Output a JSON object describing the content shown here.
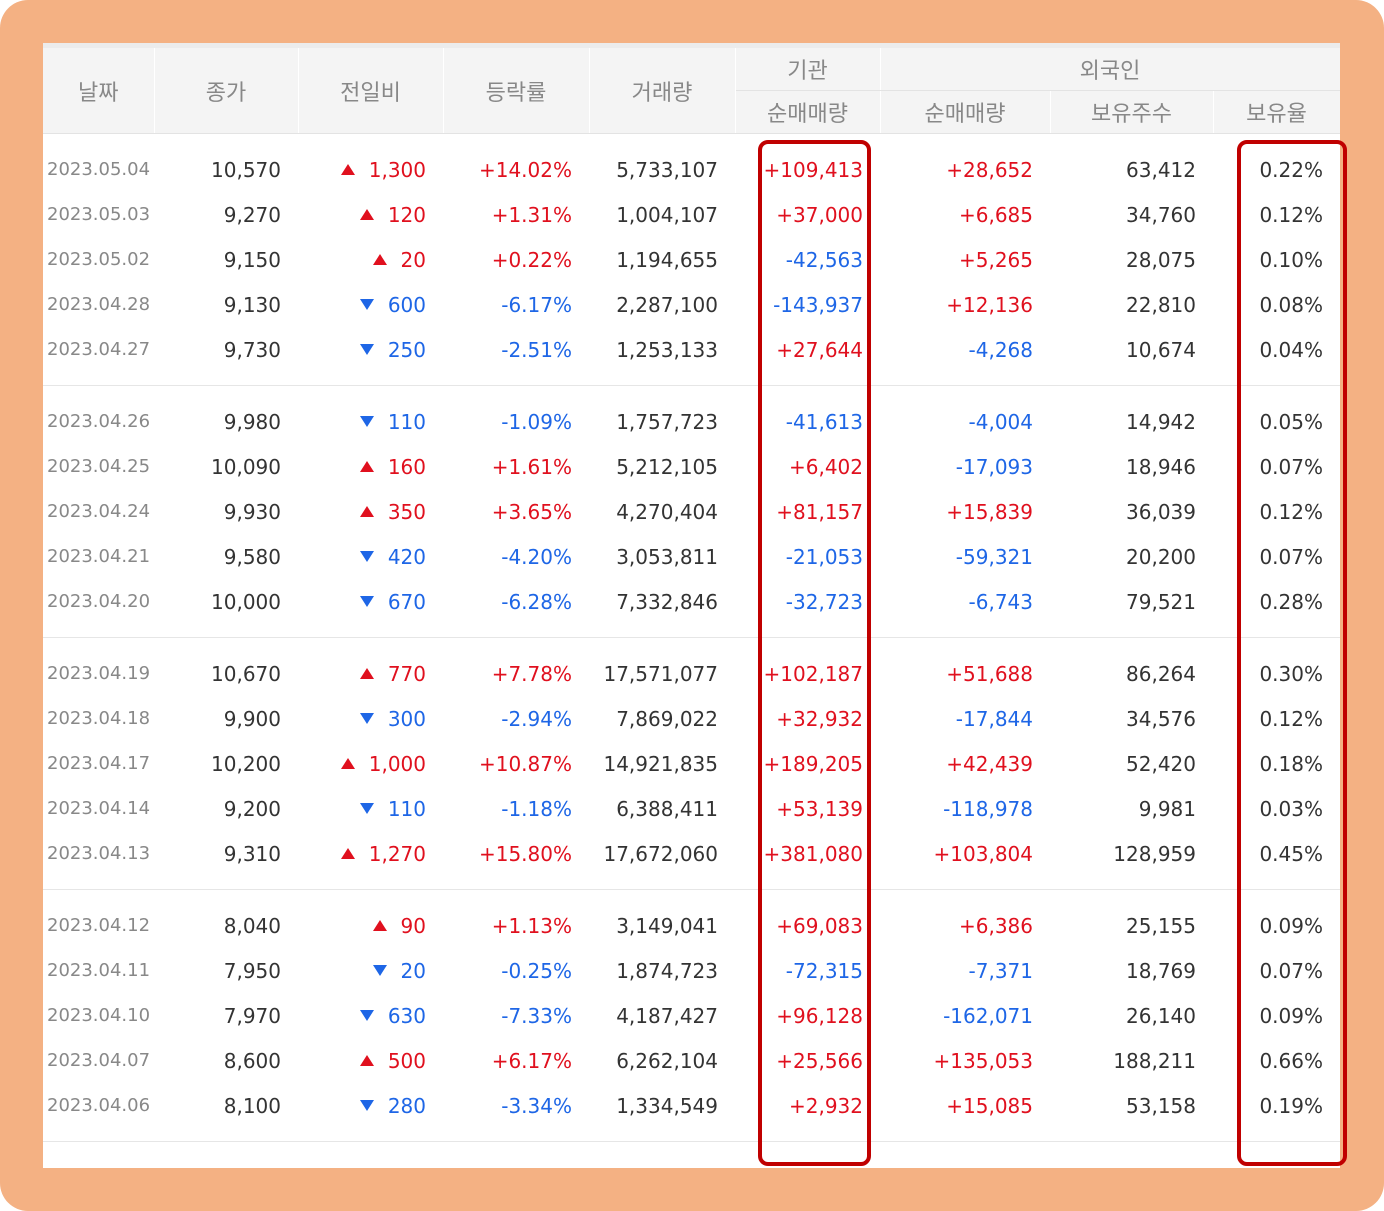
{
  "headers": {
    "date": "날짜",
    "close": "종가",
    "change": "전일비",
    "rate": "등락률",
    "volume": "거래량",
    "institution": "기관",
    "foreign": "외국인",
    "inst_net": "순매매량",
    "for_net": "순매매량",
    "for_shares": "보유주수",
    "for_ratio": "보유율"
  },
  "colors": {
    "up": "#e0101e",
    "down": "#1e66e6",
    "highlight": "#c00000",
    "frame": "#f4b183"
  },
  "groups": [
    [
      {
        "date": "2023.05.04",
        "close": "10,570",
        "dir": "up",
        "change": "1,300",
        "rate": "+14.02%",
        "volume": "5,733,107",
        "inst": "+109,413",
        "forn": "+28,652",
        "shares": "63,412",
        "ratio": "0.22%"
      },
      {
        "date": "2023.05.03",
        "close": "9,270",
        "dir": "up",
        "change": "120",
        "rate": "+1.31%",
        "volume": "1,004,107",
        "inst": "+37,000",
        "forn": "+6,685",
        "shares": "34,760",
        "ratio": "0.12%"
      },
      {
        "date": "2023.05.02",
        "close": "9,150",
        "dir": "up",
        "change": "20",
        "rate": "+0.22%",
        "volume": "1,194,655",
        "inst": "-42,563",
        "forn": "+5,265",
        "shares": "28,075",
        "ratio": "0.10%"
      },
      {
        "date": "2023.04.28",
        "close": "9,130",
        "dir": "down",
        "change": "600",
        "rate": "-6.17%",
        "volume": "2,287,100",
        "inst": "-143,937",
        "forn": "+12,136",
        "shares": "22,810",
        "ratio": "0.08%"
      },
      {
        "date": "2023.04.27",
        "close": "9,730",
        "dir": "down",
        "change": "250",
        "rate": "-2.51%",
        "volume": "1,253,133",
        "inst": "+27,644",
        "forn": "-4,268",
        "shares": "10,674",
        "ratio": "0.04%"
      }
    ],
    [
      {
        "date": "2023.04.26",
        "close": "9,980",
        "dir": "down",
        "change": "110",
        "rate": "-1.09%",
        "volume": "1,757,723",
        "inst": "-41,613",
        "forn": "-4,004",
        "shares": "14,942",
        "ratio": "0.05%"
      },
      {
        "date": "2023.04.25",
        "close": "10,090",
        "dir": "up",
        "change": "160",
        "rate": "+1.61%",
        "volume": "5,212,105",
        "inst": "+6,402",
        "forn": "-17,093",
        "shares": "18,946",
        "ratio": "0.07%"
      },
      {
        "date": "2023.04.24",
        "close": "9,930",
        "dir": "up",
        "change": "350",
        "rate": "+3.65%",
        "volume": "4,270,404",
        "inst": "+81,157",
        "forn": "+15,839",
        "shares": "36,039",
        "ratio": "0.12%"
      },
      {
        "date": "2023.04.21",
        "close": "9,580",
        "dir": "down",
        "change": "420",
        "rate": "-4.20%",
        "volume": "3,053,811",
        "inst": "-21,053",
        "forn": "-59,321",
        "shares": "20,200",
        "ratio": "0.07%"
      },
      {
        "date": "2023.04.20",
        "close": "10,000",
        "dir": "down",
        "change": "670",
        "rate": "-6.28%",
        "volume": "7,332,846",
        "inst": "-32,723",
        "forn": "-6,743",
        "shares": "79,521",
        "ratio": "0.28%"
      }
    ],
    [
      {
        "date": "2023.04.19",
        "close": "10,670",
        "dir": "up",
        "change": "770",
        "rate": "+7.78%",
        "volume": "17,571,077",
        "inst": "+102,187",
        "forn": "+51,688",
        "shares": "86,264",
        "ratio": "0.30%"
      },
      {
        "date": "2023.04.18",
        "close": "9,900",
        "dir": "down",
        "change": "300",
        "rate": "-2.94%",
        "volume": "7,869,022",
        "inst": "+32,932",
        "forn": "-17,844",
        "shares": "34,576",
        "ratio": "0.12%"
      },
      {
        "date": "2023.04.17",
        "close": "10,200",
        "dir": "up",
        "change": "1,000",
        "rate": "+10.87%",
        "volume": "14,921,835",
        "inst": "+189,205",
        "forn": "+42,439",
        "shares": "52,420",
        "ratio": "0.18%"
      },
      {
        "date": "2023.04.14",
        "close": "9,200",
        "dir": "down",
        "change": "110",
        "rate": "-1.18%",
        "volume": "6,388,411",
        "inst": "+53,139",
        "forn": "-118,978",
        "shares": "9,981",
        "ratio": "0.03%"
      },
      {
        "date": "2023.04.13",
        "close": "9,310",
        "dir": "up",
        "change": "1,270",
        "rate": "+15.80%",
        "volume": "17,672,060",
        "inst": "+381,080",
        "forn": "+103,804",
        "shares": "128,959",
        "ratio": "0.45%"
      }
    ],
    [
      {
        "date": "2023.04.12",
        "close": "8,040",
        "dir": "up",
        "change": "90",
        "rate": "+1.13%",
        "volume": "3,149,041",
        "inst": "+69,083",
        "forn": "+6,386",
        "shares": "25,155",
        "ratio": "0.09%"
      },
      {
        "date": "2023.04.11",
        "close": "7,950",
        "dir": "down",
        "change": "20",
        "rate": "-0.25%",
        "volume": "1,874,723",
        "inst": "-72,315",
        "forn": "-7,371",
        "shares": "18,769",
        "ratio": "0.07%"
      },
      {
        "date": "2023.04.10",
        "close": "7,970",
        "dir": "down",
        "change": "630",
        "rate": "-7.33%",
        "volume": "4,187,427",
        "inst": "+96,128",
        "forn": "-162,071",
        "shares": "26,140",
        "ratio": "0.09%"
      },
      {
        "date": "2023.04.07",
        "close": "8,600",
        "dir": "up",
        "change": "500",
        "rate": "+6.17%",
        "volume": "6,262,104",
        "inst": "+25,566",
        "forn": "+135,053",
        "shares": "188,211",
        "ratio": "0.66%"
      },
      {
        "date": "2023.04.06",
        "close": "8,100",
        "dir": "down",
        "change": "280",
        "rate": "-3.34%",
        "volume": "1,334,549",
        "inst": "+2,932",
        "forn": "+15,085",
        "shares": "53,158",
        "ratio": "0.19%"
      }
    ]
  ]
}
